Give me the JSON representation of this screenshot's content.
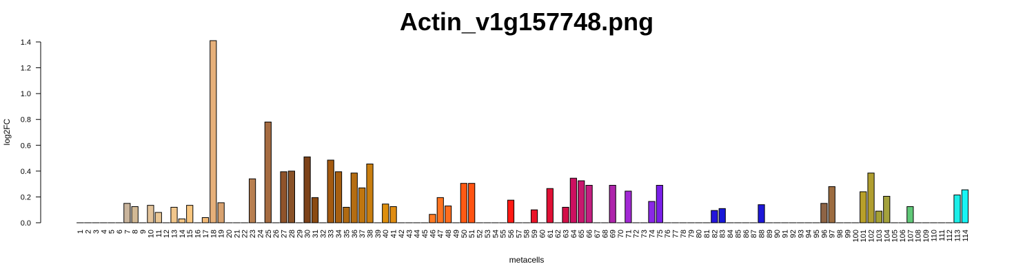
{
  "chart_data": {
    "type": "bar",
    "title": "Actin_v1g157748.png",
    "xlabel": "metacells",
    "ylabel": "log2FC",
    "ylim": [
      0,
      1.4
    ],
    "yticks": [
      "0.0",
      "0.2",
      "0.4",
      "0.6",
      "0.8",
      "1.0",
      "1.2",
      "1.4"
    ],
    "categories": [
      "1",
      "2",
      "3",
      "4",
      "5",
      "6",
      "7",
      "8",
      "9",
      "10",
      "11",
      "12",
      "13",
      "14",
      "15",
      "16",
      "17",
      "18",
      "19",
      "20",
      "21",
      "22",
      "23",
      "24",
      "25",
      "26",
      "27",
      "28",
      "29",
      "30",
      "31",
      "32",
      "33",
      "34",
      "35",
      "36",
      "37",
      "38",
      "39",
      "40",
      "41",
      "42",
      "43",
      "44",
      "45",
      "46",
      "47",
      "48",
      "49",
      "50",
      "51",
      "52",
      "53",
      "54",
      "55",
      "56",
      "57",
      "58",
      "59",
      "60",
      "61",
      "62",
      "63",
      "64",
      "65",
      "66",
      "67",
      "68",
      "69",
      "70",
      "71",
      "72",
      "73",
      "74",
      "75",
      "76",
      "77",
      "78",
      "79",
      "80",
      "81",
      "82",
      "83",
      "84",
      "85",
      "86",
      "87",
      "88",
      "89",
      "90",
      "91",
      "92",
      "93",
      "94",
      "95",
      "96",
      "97",
      "98",
      "99",
      "100",
      "101",
      "102",
      "103",
      "104",
      "105",
      "106",
      "107",
      "108",
      "109",
      "110",
      "111",
      "112",
      "113",
      "114"
    ],
    "values": [
      0,
      0,
      0,
      0,
      0,
      0,
      0.15,
      0.125,
      0,
      0.135,
      0.08,
      0,
      0.12,
      0.03,
      0.135,
      0,
      0.04,
      1.41,
      0.155,
      0,
      0,
      0,
      0.34,
      0,
      0.78,
      0,
      0.395,
      0.4,
      0,
      0.51,
      0.195,
      0,
      0.485,
      0.395,
      0.12,
      0.385,
      0.27,
      0.455,
      0,
      0.145,
      0.125,
      0,
      0,
      0,
      0,
      0.065,
      0.195,
      0.13,
      0,
      0.305,
      0.305,
      0,
      0,
      0,
      0,
      0.175,
      0,
      0,
      0.1,
      0,
      0.265,
      0,
      0.12,
      0.345,
      0.325,
      0.29,
      0,
      0,
      0.29,
      0,
      0.245,
      0,
      0,
      0.165,
      0.29,
      0,
      0,
      0,
      0,
      0,
      0,
      0.095,
      0.11,
      0,
      0,
      0,
      0,
      0.14,
      0,
      0,
      0,
      0,
      0,
      0,
      0,
      0.15,
      0.28,
      0,
      0,
      0,
      0.24,
      0.385,
      0.09,
      0.205,
      0,
      0,
      0.125,
      0,
      0,
      0,
      0,
      0,
      0.215,
      0.255
    ],
    "colors": [
      "#F7F2EB",
      "#F5EEE5",
      "#F2EADF",
      "#EFE5D8",
      "#ECE0D2",
      "#E8DBCB",
      "#C9B49C",
      "#D2B995",
      "#E0C5A1",
      "#E3C39A",
      "#E9C695",
      "#EDC690",
      "#F1C68B",
      "#F4C584",
      "#F8C67F",
      "#F6C27A",
      "#F2BA78",
      "#E6B07A",
      "#D8A270",
      "#CC9461",
      "#C38858",
      "#BC8050",
      "#B87F50",
      "#A9744A",
      "#A56B41",
      "#9A5E34",
      "#8F532A",
      "#8A5227",
      "#84491F",
      "#7D4219",
      "#8A4A12",
      "#93520F",
      "#A45A10",
      "#A85F10",
      "#B06A12",
      "#B56D12",
      "#C0760F",
      "#C97E10",
      "#D18810",
      "#DE8F0E",
      "#E08D12",
      "#E98C17",
      "#F08A1C",
      "#F5861F",
      "#FA7F22",
      "#FF7A23",
      "#FF7420",
      "#FF6C1C",
      "#FF6418",
      "#FF5A14",
      "#FF5312",
      "#FF4A12",
      "#FF3E12",
      "#FF3312",
      "#FF2A12",
      "#FF1A14",
      "#F5141B",
      "#EE1422",
      "#EA1428",
      "#E4122D",
      "#E01035",
      "#D8103F",
      "#D21048",
      "#CC1060",
      "#C8186E",
      "#C41F80",
      "#BE2090",
      "#B5229C",
      "#AE25AB",
      "#A62AC2",
      "#A228D4",
      "#9A28DC",
      "#8E28E4",
      "#8A28E6",
      "#7A20E8",
      "#6A22E4",
      "#5C24E2",
      "#4E24E0",
      "#4020DC",
      "#3422DC",
      "#2A1CDA",
      "#2414DC",
      "#1818D8",
      "#1818DC",
      "#1820DA",
      "#1A28D8",
      "#1C30D5",
      "#1E18D8",
      "#4A3C7A",
      "#5A4A6A",
      "#6B5A5A",
      "#7A664C",
      "#80683E",
      "#8A6E44",
      "#8C6548",
      "#8E6445",
      "#9C6C40",
      "#A47440",
      "#AB8A38",
      "#B49A30",
      "#B8A02A",
      "#B09E30",
      "#A4A036",
      "#A4A23C",
      "#92A84A",
      "#86AC52",
      "#60C878",
      "#58C88A",
      "#4CD0A0",
      "#40D8B8",
      "#34E0C8",
      "#28E6D8",
      "#1CEEE8",
      "#18F4F4"
    ],
    "grid": false,
    "legend": "none"
  }
}
